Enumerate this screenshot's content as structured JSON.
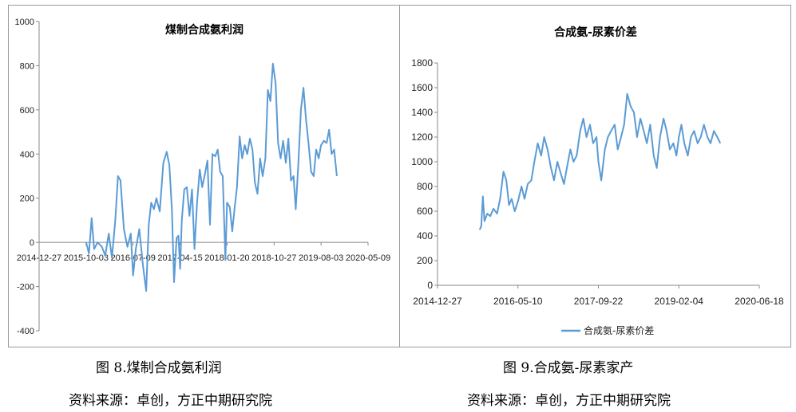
{
  "figures": [
    {
      "caption": "图 8.煤制合成氨利润",
      "source": "资料来源：卓创，方正中期研究院"
    },
    {
      "caption": "图 9.合成氨-尿素家产",
      "source": "资料来源：卓创，方正中期研究院"
    }
  ],
  "chart_data": [
    {
      "type": "line",
      "title": "煤制合成氨利润",
      "xlabel": "",
      "ylabel": "",
      "ylim": [
        -400,
        1000
      ],
      "yticks": [
        -400,
        -200,
        0,
        200,
        400,
        600,
        800,
        1000
      ],
      "xticks": [
        "2014-12-27",
        "2015-10-03",
        "2016-07-09",
        "2017-04-15",
        "2018-01-20",
        "2018-10-27",
        "2019-08-03",
        "2020-05-09"
      ],
      "line_color": "#5b9bd5",
      "legend": false,
      "series": [
        {
          "x": [
            "2015-10-03",
            "2015-10-20",
            "2015-11-05",
            "2015-11-20",
            "2015-12-10",
            "2016-01-05",
            "2016-01-25",
            "2016-02-15",
            "2016-03-05",
            "2016-03-25",
            "2016-04-10",
            "2016-04-25",
            "2016-05-15",
            "2016-06-05",
            "2016-06-25",
            "2016-07-09",
            "2016-07-25",
            "2016-08-15",
            "2016-09-05",
            "2016-09-25",
            "2016-10-10",
            "2016-10-25",
            "2016-11-10",
            "2016-11-25",
            "2016-12-15",
            "2017-01-05",
            "2017-01-25",
            "2017-02-10",
            "2017-02-25",
            "2017-03-10",
            "2017-03-25",
            "2017-04-05",
            "2017-04-15",
            "2017-04-25",
            "2017-05-10",
            "2017-05-25",
            "2017-06-10",
            "2017-06-25",
            "2017-07-10",
            "2017-07-25",
            "2017-08-10",
            "2017-08-25",
            "2017-09-10",
            "2017-09-25",
            "2017-10-10",
            "2017-10-25",
            "2017-11-10",
            "2017-11-25",
            "2017-12-10",
            "2017-12-25",
            "2018-01-10",
            "2018-01-20",
            "2018-02-05",
            "2018-02-20",
            "2018-03-05",
            "2018-03-20",
            "2018-04-05",
            "2018-04-20",
            "2018-05-05",
            "2018-05-20",
            "2018-06-05",
            "2018-06-20",
            "2018-07-05",
            "2018-07-20",
            "2018-08-05",
            "2018-08-20",
            "2018-09-05",
            "2018-09-20",
            "2018-10-05",
            "2018-10-20",
            "2018-11-05",
            "2018-11-20",
            "2018-12-05",
            "2018-12-20",
            "2019-01-05",
            "2019-01-20",
            "2019-02-05",
            "2019-02-20",
            "2019-03-05",
            "2019-03-20",
            "2019-04-05",
            "2019-04-20",
            "2019-05-05",
            "2019-05-20",
            "2019-06-05",
            "2019-06-20",
            "2019-07-05",
            "2019-07-20",
            "2019-08-03",
            "2019-08-20",
            "2019-09-05",
            "2019-09-20",
            "2019-10-05",
            "2019-10-20",
            "2019-11-05"
          ],
          "y": [
            0,
            -50,
            110,
            -30,
            0,
            -20,
            -60,
            40,
            -70,
            100,
            300,
            280,
            60,
            -20,
            40,
            -150,
            -30,
            60,
            -100,
            -220,
            80,
            180,
            150,
            200,
            140,
            360,
            410,
            350,
            150,
            -180,
            20,
            30,
            -120,
            100,
            240,
            250,
            120,
            240,
            -30,
            180,
            330,
            250,
            310,
            370,
            80,
            400,
            390,
            420,
            320,
            300,
            -80,
            180,
            160,
            50,
            150,
            250,
            480,
            380,
            440,
            400,
            470,
            420,
            270,
            220,
            380,
            300,
            380,
            690,
            640,
            810,
            720,
            450,
            380,
            460,
            360,
            470,
            280,
            300,
            150,
            350,
            600,
            700,
            560,
            450,
            320,
            300,
            420,
            380,
            440,
            460,
            450,
            510,
            400,
            420,
            300
          ]
        }
      ]
    },
    {
      "type": "line",
      "title": "合成氨-尿素价差",
      "xlabel": "",
      "ylabel": "",
      "ylim": [
        0,
        1800
      ],
      "yticks": [
        0,
        200,
        400,
        600,
        800,
        1000,
        1200,
        1400,
        1600,
        1800
      ],
      "xticks": [
        "2014-12-27",
        "2016-05-10",
        "2017-09-22",
        "2019-02-04",
        "2020-06-18"
      ],
      "line_color": "#5b9bd5",
      "legend": true,
      "legend_position": "bottom",
      "series": [
        {
          "name": "合成氨-尿素价差",
          "x": [
            "2015-09-15",
            "2015-09-25",
            "2015-10-05",
            "2015-10-15",
            "2015-11-01",
            "2015-11-20",
            "2015-12-10",
            "2016-01-01",
            "2016-01-20",
            "2016-02-10",
            "2016-02-28",
            "2016-03-15",
            "2016-04-01",
            "2016-04-20",
            "2016-05-10",
            "2016-06-01",
            "2016-06-20",
            "2016-07-10",
            "2016-08-01",
            "2016-08-20",
            "2016-09-10",
            "2016-10-01",
            "2016-10-20",
            "2016-11-10",
            "2016-12-01",
            "2016-12-20",
            "2017-01-10",
            "2017-02-01",
            "2017-02-20",
            "2017-03-10",
            "2017-04-01",
            "2017-04-20",
            "2017-05-10",
            "2017-06-01",
            "2017-06-20",
            "2017-07-10",
            "2017-08-01",
            "2017-08-20",
            "2017-09-10",
            "2017-09-22",
            "2017-10-10",
            "2017-11-01",
            "2017-11-20",
            "2017-12-10",
            "2018-01-01",
            "2018-01-20",
            "2018-02-10",
            "2018-03-01",
            "2018-03-20",
            "2018-04-10",
            "2018-05-01",
            "2018-05-20",
            "2018-06-10",
            "2018-07-01",
            "2018-07-20",
            "2018-08-10",
            "2018-09-01",
            "2018-09-20",
            "2018-10-10",
            "2018-11-01",
            "2018-11-20",
            "2018-12-10",
            "2019-01-01",
            "2019-01-20",
            "2019-02-04",
            "2019-02-20",
            "2019-03-10",
            "2019-04-01",
            "2019-04-20",
            "2019-05-10",
            "2019-06-01",
            "2019-06-20",
            "2019-07-10",
            "2019-08-01",
            "2019-08-20",
            "2019-09-10",
            "2019-10-01",
            "2019-10-20"
          ],
          "y": [
            450,
            480,
            720,
            520,
            580,
            560,
            620,
            580,
            700,
            920,
            850,
            650,
            700,
            600,
            680,
            800,
            700,
            820,
            850,
            1000,
            1150,
            1050,
            1200,
            1100,
            950,
            850,
            1000,
            900,
            820,
            950,
            1100,
            1000,
            1050,
            1250,
            1350,
            1200,
            1300,
            1150,
            1200,
            1000,
            850,
            1100,
            1200,
            1250,
            1300,
            1100,
            1200,
            1300,
            1550,
            1450,
            1400,
            1200,
            1350,
            1250,
            1150,
            1300,
            1050,
            950,
            1200,
            1350,
            1250,
            1100,
            1150,
            1050,
            1200,
            1300,
            1150,
            1050,
            1200,
            1250,
            1150,
            1200,
            1300,
            1200,
            1150,
            1250,
            1200,
            1150
          ]
        }
      ]
    }
  ]
}
